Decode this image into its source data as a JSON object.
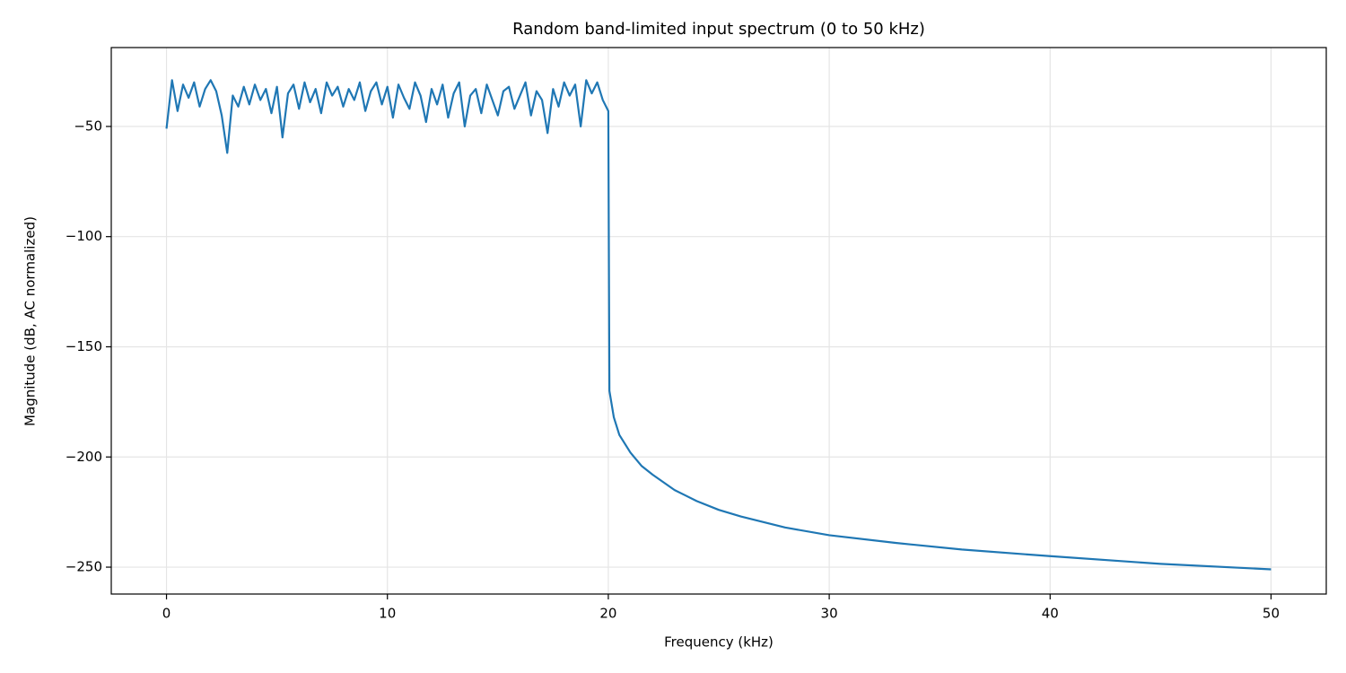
{
  "chart_data": {
    "type": "line",
    "title": "Random band-limited input spectrum (0 to 50 kHz)",
    "x_label": "Frequency (kHz)",
    "y_label": "Magnitude (dB, AC normalized)",
    "color": "#1f77b4",
    "grid": true,
    "xlim": [
      -2.5,
      52.5
    ],
    "ylim": [
      -262.2,
      -14.2
    ],
    "xticks": [
      0,
      10,
      20,
      30,
      40,
      50
    ],
    "yticks": [
      {
        "value": -250,
        "label": "−250"
      },
      {
        "value": -200,
        "label": "−200"
      },
      {
        "value": -150,
        "label": "−150"
      },
      {
        "value": -100,
        "label": "−100"
      },
      {
        "value": -50,
        "label": "−50"
      }
    ],
    "x": [
      0,
      0.25,
      0.5,
      0.75,
      1,
      1.25,
      1.5,
      1.75,
      2,
      2.25,
      2.5,
      2.75,
      3,
      3.25,
      3.5,
      3.75,
      4,
      4.25,
      4.5,
      4.75,
      5,
      5.25,
      5.5,
      5.75,
      6,
      6.25,
      6.5,
      6.75,
      7,
      7.25,
      7.5,
      7.75,
      8,
      8.25,
      8.5,
      8.75,
      9,
      9.25,
      9.5,
      9.75,
      10,
      10.25,
      10.5,
      10.75,
      11,
      11.25,
      11.5,
      11.75,
      12,
      12.25,
      12.5,
      12.75,
      13,
      13.25,
      13.5,
      13.75,
      14,
      14.25,
      14.5,
      14.75,
      15,
      15.25,
      15.5,
      15.75,
      16,
      16.25,
      16.5,
      16.75,
      17,
      17.25,
      17.5,
      17.75,
      18,
      18.25,
      18.5,
      18.75,
      19,
      19.25,
      19.5,
      19.75,
      20,
      20.05,
      20.25,
      20.5,
      21,
      21.5,
      22,
      23,
      24,
      25,
      26,
      28,
      30,
      33,
      36,
      40,
      45,
      50
    ],
    "values": [
      -51,
      -29,
      -43,
      -31,
      -37,
      -30,
      -41,
      -33,
      -29,
      -34,
      -45,
      -62,
      -36,
      -41,
      -32,
      -40,
      -31,
      -38,
      -33,
      -44,
      -32,
      -55,
      -35,
      -31,
      -42,
      -30,
      -39,
      -33,
      -44,
      -30,
      -36,
      -32,
      -41,
      -33,
      -38,
      -30,
      -43,
      -34,
      -30,
      -40,
      -32,
      -46,
      -31,
      -37,
      -42,
      -30,
      -36,
      -48,
      -33,
      -40,
      -31,
      -46,
      -35,
      -30,
      -50,
      -36,
      -33,
      -44,
      -31,
      -38,
      -45,
      -34,
      -32,
      -42,
      -36,
      -30,
      -45,
      -34,
      -38,
      -53,
      -33,
      -41,
      -30,
      -36,
      -31,
      -50,
      -29,
      -35,
      -30,
      -38,
      -43,
      -170,
      -182,
      -190,
      -198,
      -204,
      -208,
      -215,
      -220,
      -224,
      -227,
      -232,
      -235.5,
      -239,
      -242,
      -245,
      -248.5,
      -251
    ]
  }
}
